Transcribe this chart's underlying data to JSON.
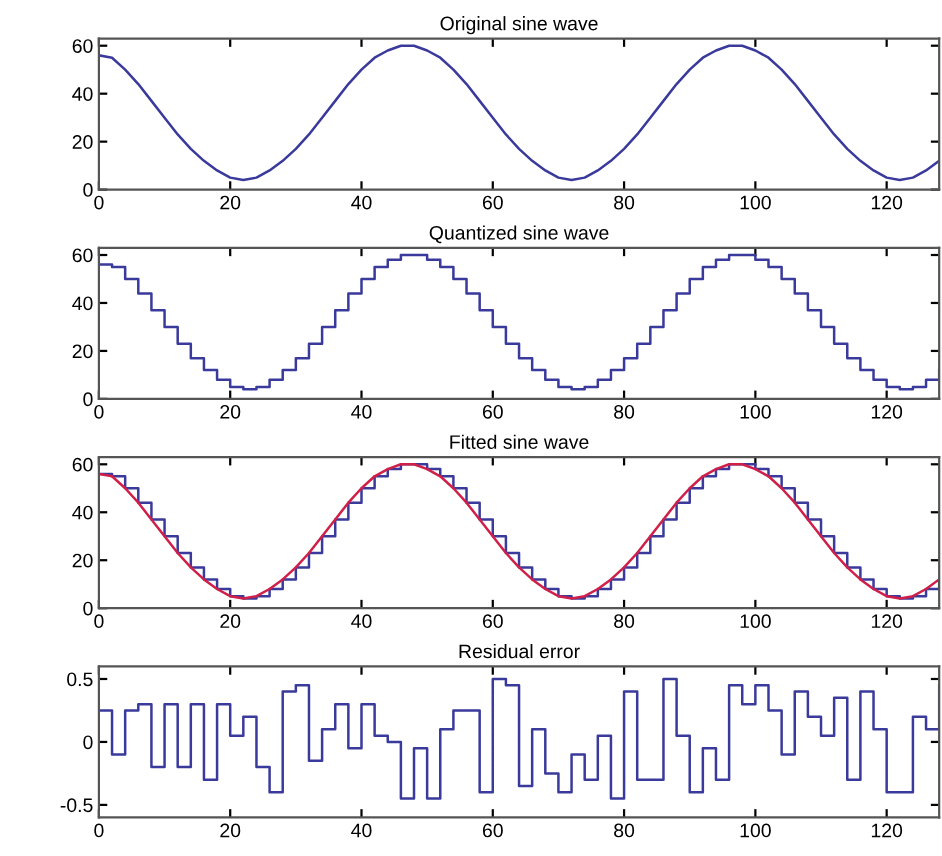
{
  "chart_data": [
    {
      "type": "line",
      "title": "Original sine wave",
      "x": [
        0,
        2,
        4,
        6,
        8,
        10,
        12,
        14,
        16,
        18,
        20,
        22,
        24,
        26,
        28,
        30,
        32,
        34,
        36,
        38,
        40,
        42,
        44,
        46,
        48,
        50,
        52,
        54,
        56,
        58,
        60,
        62,
        64,
        66,
        68,
        70,
        72,
        74,
        76,
        78,
        80,
        82,
        84,
        86,
        88,
        90,
        92,
        94,
        96,
        98,
        100,
        102,
        104,
        106,
        108,
        110,
        112,
        114,
        116,
        118,
        120,
        122,
        124,
        126,
        128
      ],
      "series": [
        {
          "color": "#3a3a9c",
          "values": [
            56,
            55,
            50,
            44,
            37,
            30,
            23,
            17,
            12,
            8,
            5,
            4,
            5,
            8,
            12,
            17,
            23,
            30,
            37,
            44,
            50,
            55,
            58,
            60,
            60,
            58,
            55,
            50,
            44,
            37,
            30,
            23,
            17,
            12,
            8,
            5,
            4,
            5,
            8,
            12,
            17,
            23,
            30,
            37,
            44,
            50,
            55,
            58,
            60,
            60,
            58,
            55,
            50,
            44,
            37,
            30,
            23,
            17,
            12,
            8,
            5,
            4,
            5,
            8,
            12
          ]
        }
      ],
      "xlim": [
        0,
        128
      ],
      "xticks": [
        0,
        20,
        40,
        60,
        80,
        100,
        120
      ],
      "ylim": [
        0,
        63
      ],
      "yticks": [
        0,
        20,
        40,
        60
      ],
      "grid": false
    },
    {
      "type": "step",
      "title": "Quantized sine wave",
      "x": [
        0,
        2,
        4,
        6,
        8,
        10,
        12,
        14,
        16,
        18,
        20,
        22,
        24,
        26,
        28,
        30,
        32,
        34,
        36,
        38,
        40,
        42,
        44,
        46,
        48,
        50,
        52,
        54,
        56,
        58,
        60,
        62,
        64,
        66,
        68,
        70,
        72,
        74,
        76,
        78,
        80,
        82,
        84,
        86,
        88,
        90,
        92,
        94,
        96,
        98,
        100,
        102,
        104,
        106,
        108,
        110,
        112,
        114,
        116,
        118,
        120,
        122,
        124,
        126,
        128
      ],
      "series": [
        {
          "color": "#3a3a9c",
          "values": [
            56,
            55,
            50,
            44,
            37,
            30,
            23,
            17,
            12,
            8,
            5,
            4,
            5,
            8,
            12,
            17,
            23,
            30,
            37,
            44,
            50,
            55,
            58,
            60,
            60,
            58,
            55,
            50,
            44,
            37,
            30,
            23,
            17,
            12,
            8,
            5,
            4,
            5,
            8,
            12,
            17,
            23,
            30,
            37,
            44,
            50,
            55,
            58,
            60,
            60,
            58,
            55,
            50,
            44,
            37,
            30,
            23,
            17,
            12,
            8,
            5,
            4,
            5,
            8,
            12
          ]
        }
      ],
      "xlim": [
        0,
        128
      ],
      "xticks": [
        0,
        20,
        40,
        60,
        80,
        100,
        120
      ],
      "ylim": [
        0,
        63
      ],
      "yticks": [
        0,
        20,
        40,
        60
      ],
      "grid": false
    },
    {
      "type": "step",
      "title": "Fitted sine wave",
      "x": [
        0,
        2,
        4,
        6,
        8,
        10,
        12,
        14,
        16,
        18,
        20,
        22,
        24,
        26,
        28,
        30,
        32,
        34,
        36,
        38,
        40,
        42,
        44,
        46,
        48,
        50,
        52,
        54,
        56,
        58,
        60,
        62,
        64,
        66,
        68,
        70,
        72,
        74,
        76,
        78,
        80,
        82,
        84,
        86,
        88,
        90,
        92,
        94,
        96,
        98,
        100,
        102,
        104,
        106,
        108,
        110,
        112,
        114,
        116,
        118,
        120,
        122,
        124,
        126,
        128
      ],
      "series": [
        {
          "color": "#3a3a9c",
          "values": [
            56,
            55,
            50,
            44,
            37,
            30,
            23,
            17,
            12,
            8,
            5,
            4,
            5,
            8,
            12,
            17,
            23,
            30,
            37,
            44,
            50,
            55,
            58,
            60,
            60,
            58,
            55,
            50,
            44,
            37,
            30,
            23,
            17,
            12,
            8,
            5,
            4,
            5,
            8,
            12,
            17,
            23,
            30,
            37,
            44,
            50,
            55,
            58,
            60,
            60,
            58,
            55,
            50,
            44,
            37,
            30,
            23,
            17,
            12,
            8,
            5,
            4,
            5,
            8,
            12
          ]
        },
        {
          "type": "line",
          "color": "#d0204a",
          "values": [
            56,
            55,
            50,
            44,
            37,
            30,
            23,
            17,
            12,
            8,
            5,
            4,
            5,
            8,
            12,
            17,
            23,
            30,
            37,
            44,
            50,
            55,
            58,
            60,
            60,
            58,
            55,
            50,
            44,
            37,
            30,
            23,
            17,
            12,
            8,
            5,
            4,
            5,
            8,
            12,
            17,
            23,
            30,
            37,
            44,
            50,
            55,
            58,
            60,
            60,
            58,
            55,
            50,
            44,
            37,
            30,
            23,
            17,
            12,
            8,
            5,
            4,
            5,
            8,
            12
          ]
        }
      ],
      "xlim": [
        0,
        128
      ],
      "xticks": [
        0,
        20,
        40,
        60,
        80,
        100,
        120
      ],
      "ylim": [
        0,
        63
      ],
      "yticks": [
        0,
        20,
        40,
        60
      ],
      "grid": false
    },
    {
      "type": "step",
      "title": "Residual error",
      "x": [
        0,
        2,
        4,
        6,
        8,
        10,
        12,
        14,
        16,
        18,
        20,
        22,
        24,
        26,
        28,
        30,
        32,
        34,
        36,
        38,
        40,
        42,
        44,
        46,
        48,
        50,
        52,
        54,
        56,
        58,
        60,
        62,
        64,
        66,
        68,
        70,
        72,
        74,
        76,
        78,
        80,
        82,
        84,
        86,
        88,
        90,
        92,
        94,
        96,
        98,
        100,
        102,
        104,
        106,
        108,
        110,
        112,
        114,
        116,
        118,
        120,
        122,
        124,
        126,
        128
      ],
      "series": [
        {
          "color": "#3a3a9c",
          "values": [
            0.25,
            -0.1,
            0.25,
            0.3,
            -0.2,
            0.3,
            -0.2,
            0.3,
            -0.3,
            0.3,
            0.05,
            0.2,
            -0.2,
            -0.4,
            0.4,
            0.45,
            -0.15,
            0.1,
            0.3,
            -0.05,
            0.3,
            0.05,
            0,
            -0.45,
            -0.05,
            -0.45,
            0.1,
            0.25,
            0.25,
            -0.4,
            0.5,
            0.45,
            -0.35,
            0.1,
            -0.25,
            -0.4,
            -0.1,
            -0.3,
            0.05,
            -0.45,
            0.4,
            -0.3,
            -0.3,
            0.5,
            0.05,
            -0.4,
            -0.05,
            -0.3,
            0.45,
            0.3,
            0.45,
            0.25,
            -0.1,
            0.4,
            0.2,
            0.05,
            0.35,
            -0.3,
            0.4,
            0.1,
            -0.4,
            -0.4,
            0.2,
            0.1,
            0.45
          ]
        }
      ],
      "xlim": [
        0,
        128
      ],
      "xticks": [
        0,
        20,
        40,
        60,
        80,
        100,
        120
      ],
      "ylim": [
        -0.6,
        0.6
      ],
      "yticks": [
        -0.5,
        0,
        0.5
      ],
      "grid": false
    }
  ]
}
